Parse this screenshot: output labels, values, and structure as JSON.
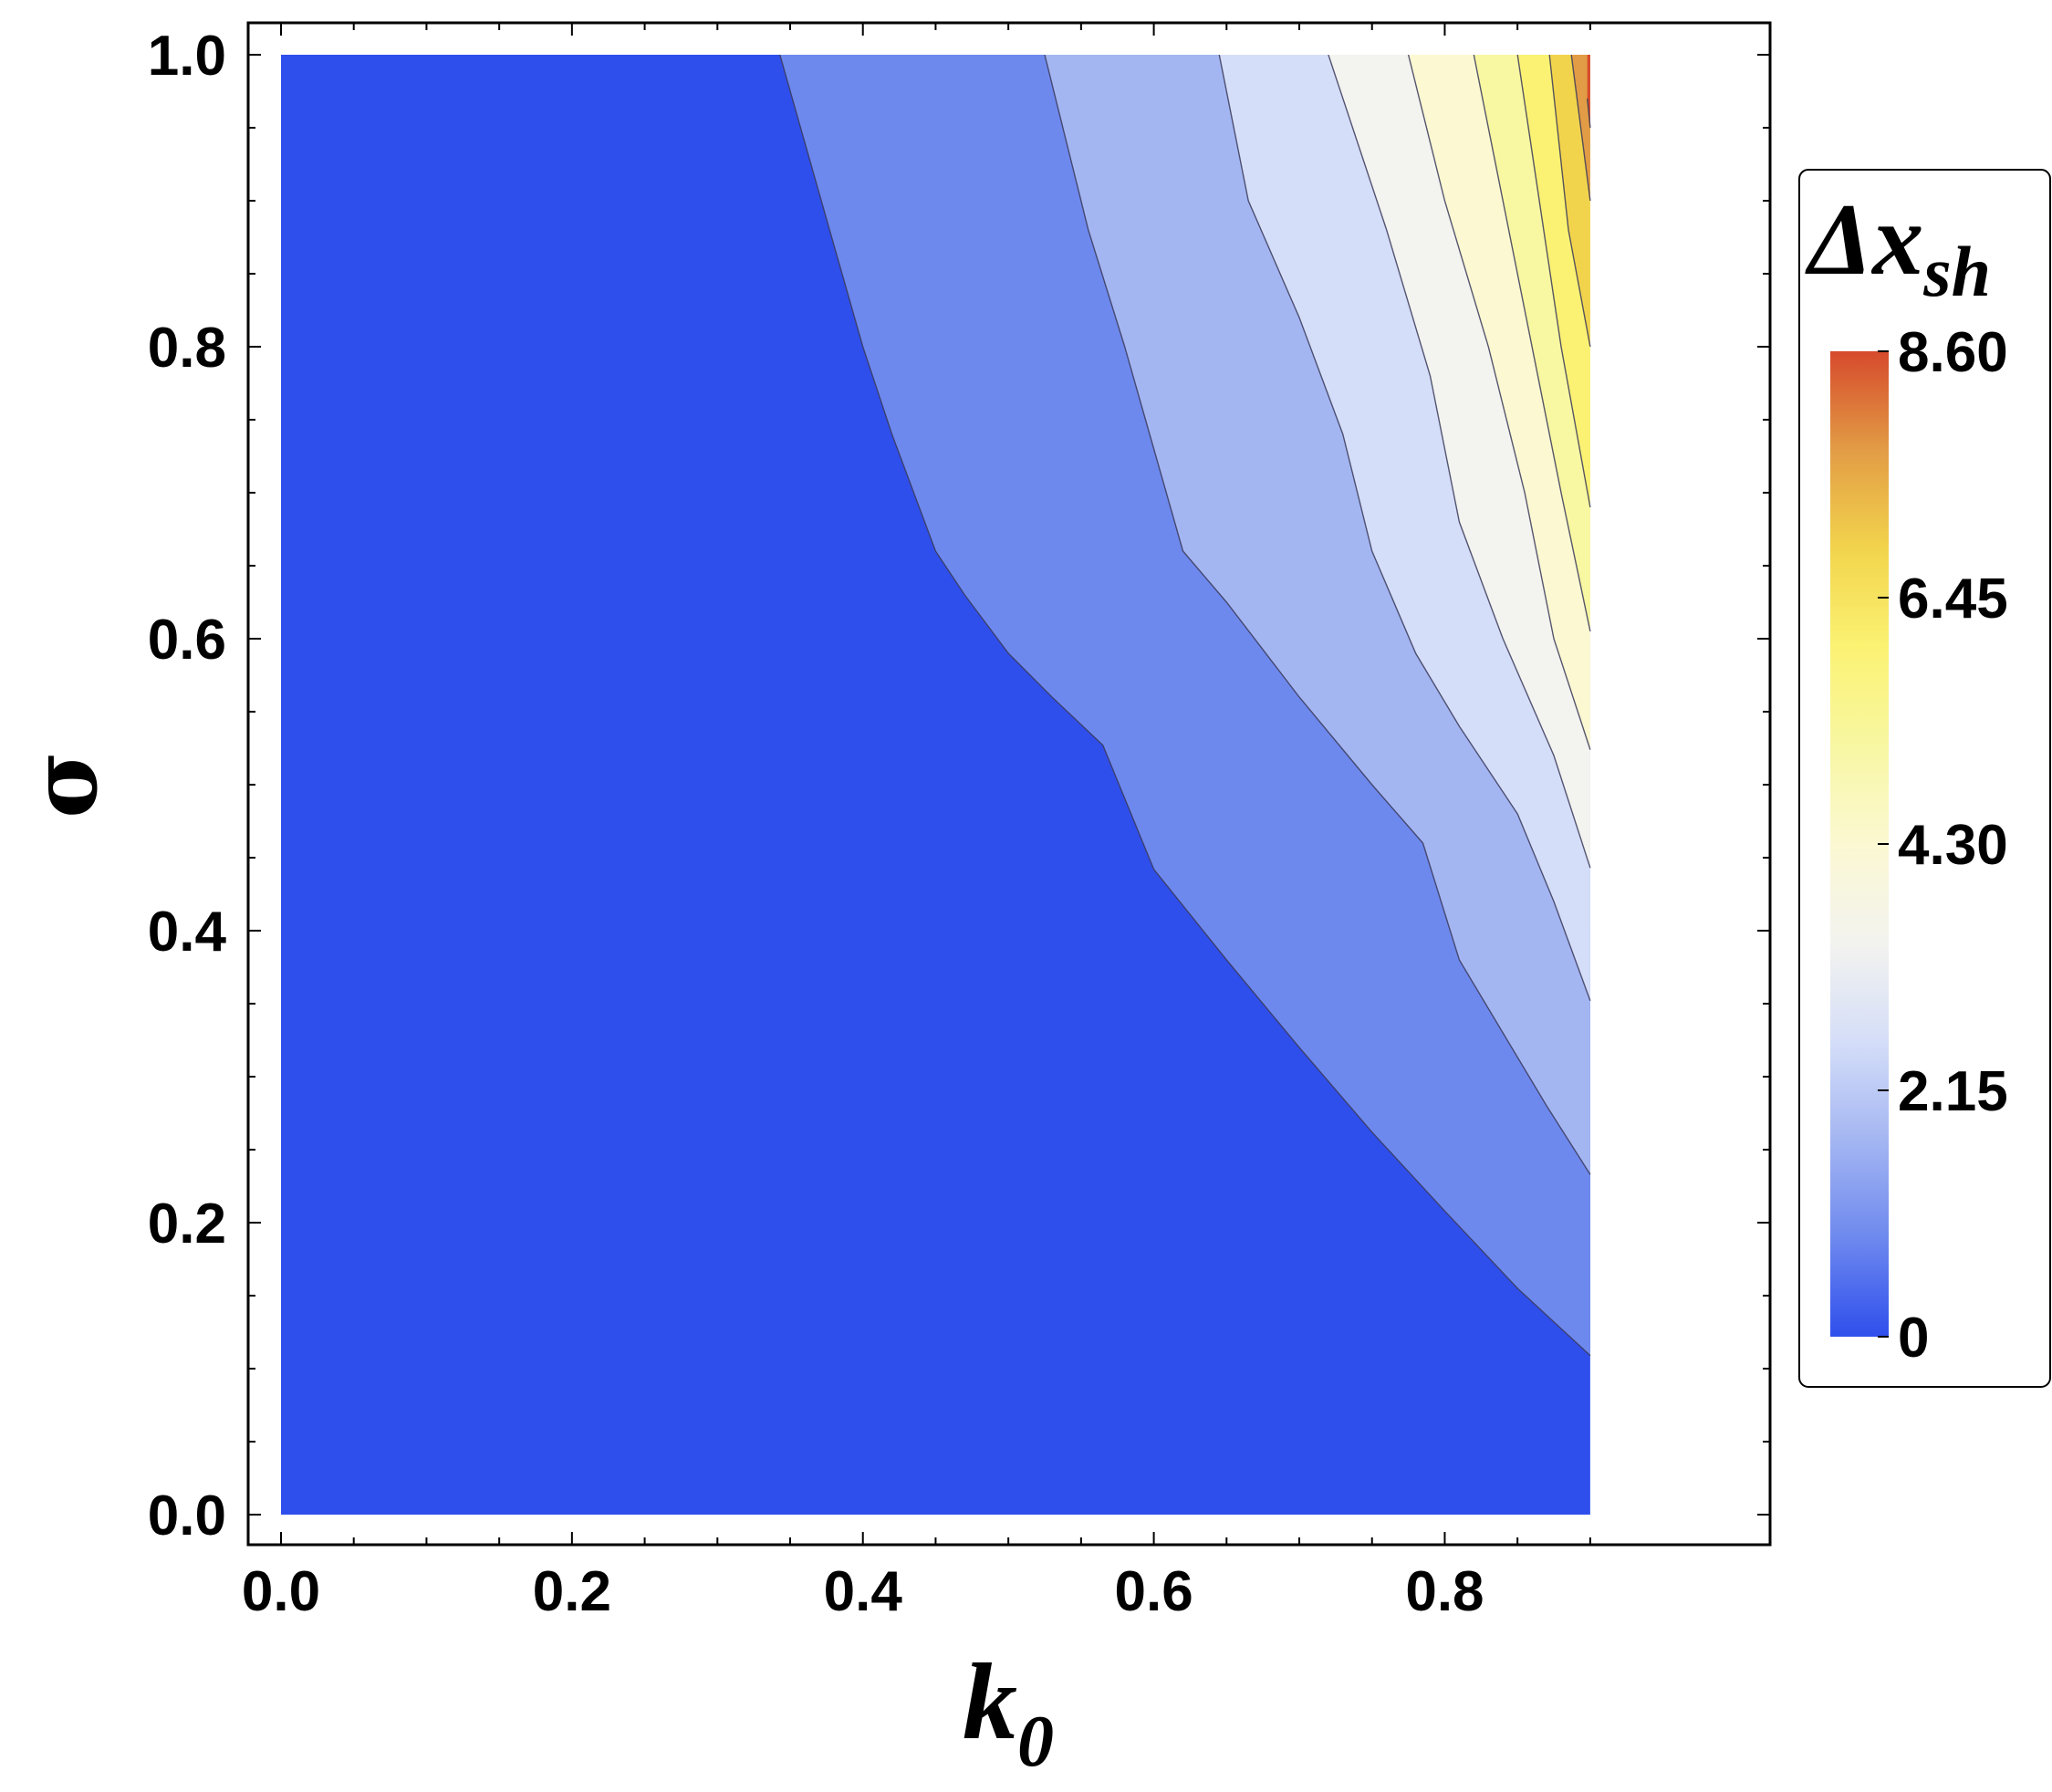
{
  "chart_data": {
    "type": "contour",
    "xlabel": "k",
    "xlabel_sub": "0",
    "ylabel": "σ",
    "xlim": [
      0,
      0.9
    ],
    "ylim": [
      0,
      1.0
    ],
    "x_ticks": [
      "0.0",
      "0.2",
      "0.4",
      "0.6",
      "0.8"
    ],
    "x_tick_values": [
      0,
      0.2,
      0.4,
      0.6,
      0.8
    ],
    "y_ticks": [
      "0.0",
      "0.2",
      "0.4",
      "0.6",
      "0.8",
      "1.0"
    ],
    "y_tick_values": [
      0,
      0.2,
      0.4,
      0.6,
      0.8,
      1.0
    ],
    "legend": {
      "title_main": "Δx",
      "title_sub": "sh",
      "labels": [
        "8.60",
        "6.45",
        "4.30",
        "2.15",
        "0"
      ],
      "label_values": [
        8.6,
        6.45,
        4.3,
        2.15,
        0
      ],
      "min": 0,
      "max": 8.6
    },
    "levels": [
      {
        "fill": "#2f4fec",
        "boundary": null
      },
      {
        "fill": "#6e89ee",
        "boundary": [
          [
            0.9,
            0.109
          ],
          [
            0.85,
            0.155
          ],
          [
            0.8,
            0.208
          ],
          [
            0.75,
            0.262
          ],
          [
            0.7,
            0.32
          ],
          [
            0.65,
            0.38
          ],
          [
            0.6,
            0.442
          ],
          [
            0.565,
            0.527
          ],
          [
            0.53,
            0.56
          ],
          [
            0.5,
            0.59
          ],
          [
            0.47,
            0.63
          ],
          [
            0.45,
            0.66
          ],
          [
            0.42,
            0.74
          ],
          [
            0.4,
            0.8
          ],
          [
            0.38,
            0.87
          ],
          [
            0.36,
            0.94
          ],
          [
            0.343,
            1.0
          ]
        ]
      },
      {
        "fill": "#a4b6f2",
        "boundary": [
          [
            0.9,
            0.233
          ],
          [
            0.87,
            0.28
          ],
          [
            0.84,
            0.33
          ],
          [
            0.81,
            0.38
          ],
          [
            0.785,
            0.46
          ],
          [
            0.75,
            0.5
          ],
          [
            0.7,
            0.56
          ],
          [
            0.65,
            0.625
          ],
          [
            0.62,
            0.66
          ],
          [
            0.6,
            0.73
          ],
          [
            0.58,
            0.8
          ],
          [
            0.555,
            0.88
          ],
          [
            0.525,
            1.0
          ]
        ]
      },
      {
        "fill": "#d5def8",
        "boundary": [
          [
            0.9,
            0.352
          ],
          [
            0.875,
            0.42
          ],
          [
            0.85,
            0.48
          ],
          [
            0.81,
            0.54
          ],
          [
            0.78,
            0.59
          ],
          [
            0.75,
            0.66
          ],
          [
            0.73,
            0.74
          ],
          [
            0.7,
            0.82
          ],
          [
            0.665,
            0.9
          ],
          [
            0.645,
            1.0
          ]
        ]
      },
      {
        "fill": "#f3f3ef",
        "boundary": [
          [
            0.9,
            0.443
          ],
          [
            0.875,
            0.52
          ],
          [
            0.84,
            0.6
          ],
          [
            0.81,
            0.68
          ],
          [
            0.79,
            0.78
          ],
          [
            0.76,
            0.88
          ],
          [
            0.72,
            1.0
          ]
        ]
      },
      {
        "fill": "#fbf8d2",
        "boundary": [
          [
            0.9,
            0.524
          ],
          [
            0.875,
            0.6
          ],
          [
            0.855,
            0.7
          ],
          [
            0.83,
            0.8
          ],
          [
            0.8,
            0.9
          ],
          [
            0.775,
            1.0
          ]
        ]
      },
      {
        "fill": "#f8f7a2",
        "boundary": [
          [
            0.9,
            0.605
          ],
          [
            0.88,
            0.7
          ],
          [
            0.86,
            0.8
          ],
          [
            0.84,
            0.9
          ],
          [
            0.82,
            1.0
          ]
        ]
      },
      {
        "fill": "#fbf273",
        "boundary": [
          [
            0.9,
            0.69
          ],
          [
            0.88,
            0.8
          ],
          [
            0.865,
            0.9
          ],
          [
            0.85,
            1.0
          ]
        ]
      },
      {
        "fill": "#f2d44c",
        "boundary": [
          [
            0.9,
            0.8
          ],
          [
            0.885,
            0.88
          ],
          [
            0.872,
            1.0
          ]
        ]
      },
      {
        "fill": "#e29c45",
        "boundary": [
          [
            0.9,
            0.9
          ],
          [
            0.887,
            1.0
          ]
        ]
      },
      {
        "fill": "#d64a2c",
        "boundary": [
          [
            0.9,
            0.95
          ],
          [
            0.898,
            0.97
          ]
        ]
      }
    ],
    "colorbar_stops": [
      "#2f4fec",
      "#6e89ee",
      "#a4b6f2",
      "#d5def8",
      "#f3f3ef",
      "#fbf8d2",
      "#f8f7a2",
      "#fbf273",
      "#f2d44c",
      "#e29c45",
      "#d64a2c"
    ],
    "grid": false
  }
}
